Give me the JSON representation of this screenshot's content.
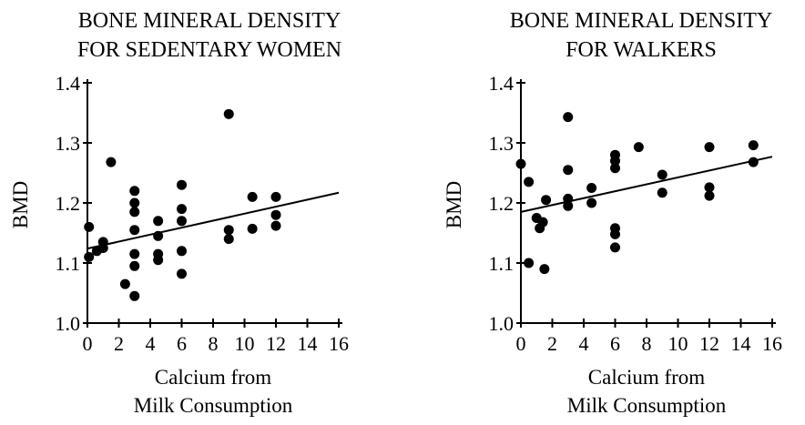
{
  "chart_data": [
    {
      "type": "scatter",
      "title": [
        "BONE MINERAL DENSITY",
        "FOR SEDENTARY WOMEN"
      ],
      "xlabel": [
        "Calcium from",
        "Milk Consumption"
      ],
      "ylabel": "BMD",
      "xlim": [
        0,
        16
      ],
      "ylim": [
        1.0,
        1.4
      ],
      "xticks": [
        "0",
        "2",
        "4",
        "6",
        "8",
        "10",
        "12",
        "14",
        "16"
      ],
      "yticks": [
        "1.0",
        "1.1",
        "1.2",
        "1.3",
        "1.4"
      ],
      "grid": false,
      "x": [
        0.1,
        0.1,
        0.6,
        1.0,
        1.0,
        1.5,
        2.4,
        3.0,
        3.0,
        3.0,
        3.0,
        3.0,
        3.0,
        3.0,
        4.5,
        4.5,
        4.5,
        4.5,
        6.0,
        6.0,
        6.0,
        6.0,
        6.0,
        9.0,
        9.0,
        9.0,
        10.5,
        10.5,
        12.0,
        12.0,
        12.0
      ],
      "y": [
        1.16,
        1.11,
        1.12,
        1.135,
        1.125,
        1.268,
        1.065,
        1.22,
        1.2,
        1.185,
        1.155,
        1.115,
        1.095,
        1.045,
        1.17,
        1.145,
        1.115,
        1.105,
        1.23,
        1.19,
        1.17,
        1.12,
        1.082,
        1.348,
        1.155,
        1.14,
        1.21,
        1.157,
        1.21,
        1.18,
        1.162
      ],
      "trendline": {
        "x": [
          0,
          16
        ],
        "y": [
          1.124,
          1.217
        ]
      }
    },
    {
      "type": "scatter",
      "title": [
        "BONE MINERAL DENSITY",
        "FOR WALKERS"
      ],
      "xlabel": [
        "Calcium from",
        "Milk Consumption"
      ],
      "ylabel": "BMD",
      "xlim": [
        0,
        16
      ],
      "ylim": [
        1.0,
        1.4
      ],
      "xticks": [
        "0",
        "2",
        "4",
        "6",
        "8",
        "10",
        "12",
        "14",
        "16"
      ],
      "yticks": [
        "1.0",
        "1.1",
        "1.2",
        "1.3",
        "1.4"
      ],
      "grid": false,
      "x": [
        0.0,
        0.5,
        0.5,
        1.0,
        1.2,
        1.4,
        1.5,
        1.6,
        3.0,
        3.0,
        3.0,
        3.0,
        4.5,
        4.5,
        6.0,
        6.0,
        6.0,
        6.0,
        6.0,
        6.0,
        7.5,
        9.0,
        9.0,
        12.0,
        12.0,
        12.0,
        14.8,
        14.8
      ],
      "y": [
        1.265,
        1.1,
        1.235,
        1.175,
        1.158,
        1.168,
        1.09,
        1.205,
        1.343,
        1.255,
        1.207,
        1.195,
        1.225,
        1.2,
        1.28,
        1.27,
        1.258,
        1.158,
        1.148,
        1.126,
        1.293,
        1.247,
        1.217,
        1.293,
        1.226,
        1.212,
        1.296,
        1.268
      ],
      "trendline": {
        "x": [
          0,
          16
        ],
        "y": [
          1.185,
          1.277
        ]
      }
    }
  ]
}
